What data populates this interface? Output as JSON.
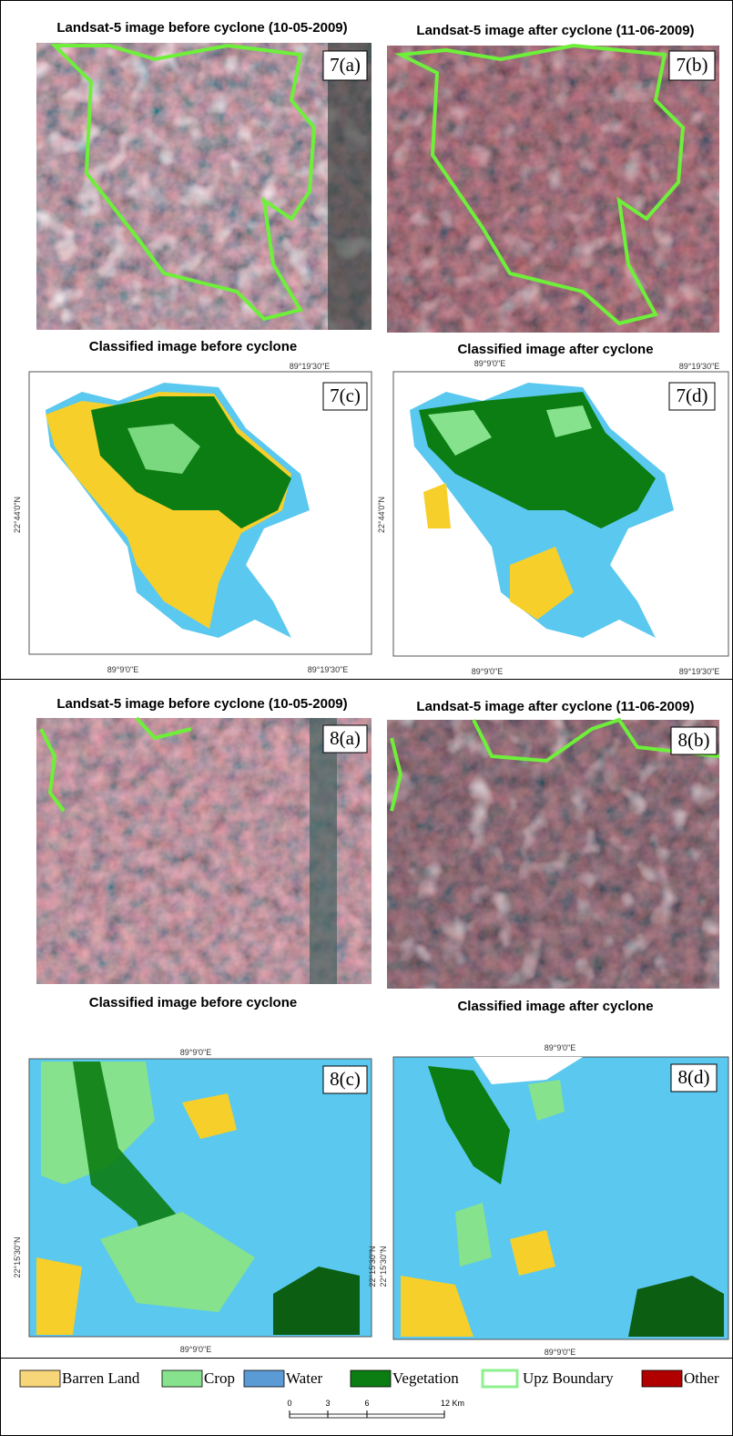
{
  "figure_7": {
    "image_before": {
      "title": "Landsat-5 image before cyclone (10-05-2009)",
      "label": "7(a)"
    },
    "image_after": {
      "title": "Landsat-5 image after cyclone (11-06-2009)",
      "label": "7(b)"
    },
    "classified_before": {
      "title": "Classified image before cyclone",
      "label": "7(c)",
      "top_ticks": [
        "89°19'30\"E"
      ],
      "bottom_ticks": [
        "89°9'0\"E",
        "89°19'30\"E"
      ],
      "left_ticks": [
        "22°44'0\"N"
      ]
    },
    "classified_after": {
      "title": "Classified image after cyclone",
      "label": "7(d)",
      "top_ticks": [
        "89°9'0\"E",
        "89°19'30\"E"
      ],
      "bottom_ticks": [
        "89°9'0\"E",
        "89°19'30\"E"
      ],
      "left_ticks": [
        "22°44'0\"N"
      ]
    }
  },
  "figure_8": {
    "image_before": {
      "title": "Landsat-5 image before cyclone (10-05-2009)",
      "label": "8(a)"
    },
    "image_after": {
      "title": "Landsat-5 image after cyclone (11-06-2009)",
      "label": "8(b)"
    },
    "classified_before": {
      "title": "Classified image before cyclone",
      "label": "8(c)",
      "top_ticks": [
        "89°9'0\"E"
      ],
      "bottom_ticks": [
        "89°9'0\"E"
      ],
      "left_ticks": [
        "22°15'30\"N"
      ]
    },
    "classified_after": {
      "title": "Classified image after cyclone",
      "label": "8(d)",
      "top_ticks": [
        "89°9'0\"E"
      ],
      "bottom_ticks": [
        "89°9'0\"E"
      ],
      "left_ticks": [
        "22°15'30\"N",
        "22°15'30\"N"
      ]
    }
  },
  "legend": {
    "items": [
      {
        "label": "Barren Land",
        "color": "#f7d67a"
      },
      {
        "label": "Crop",
        "color": "#86e28c"
      },
      {
        "label": "Water",
        "color": "#5b9bd5"
      },
      {
        "label": "Vegetation",
        "color": "#0b7d12"
      },
      {
        "label": "Upz Boundary",
        "color": "#8ff08f"
      },
      {
        "label": "Other",
        "color": "#b00000"
      }
    ]
  },
  "scale_bar": {
    "ticks": [
      "0",
      "3",
      "6",
      "12 Km"
    ]
  }
}
